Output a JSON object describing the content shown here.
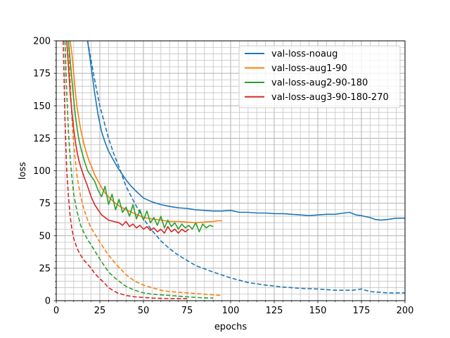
{
  "chart_data": {
    "type": "line",
    "title": "",
    "xlabel": "epochs",
    "ylabel": "loss",
    "xlim": [
      0,
      200
    ],
    "ylim": [
      0,
      200
    ],
    "xticks": [
      "0",
      "25",
      "50",
      "75",
      "100",
      "125",
      "150",
      "175",
      "200"
    ],
    "yticks": [
      "0",
      "25",
      "50",
      "75",
      "100",
      "125",
      "150",
      "175",
      "200"
    ],
    "grid": "major and minor",
    "legend_position": "top-right",
    "series": [
      {
        "name": "val-loss-noaug",
        "color": "#1f77b4",
        "style": "solid",
        "x": [
          18,
          20,
          22,
          24,
          26,
          28,
          30,
          32,
          35,
          38,
          40,
          43,
          46,
          50,
          55,
          60,
          65,
          70,
          75,
          80,
          85,
          90,
          95,
          100,
          105,
          110,
          115,
          120,
          125,
          130,
          135,
          140,
          145,
          150,
          155,
          160,
          165,
          168,
          170,
          172,
          175,
          178,
          180,
          183,
          186,
          190,
          195,
          200
        ],
        "y": [
          200,
          180,
          160,
          143,
          130,
          122,
          115,
          110,
          103,
          97,
          93,
          88,
          84,
          79,
          76,
          74,
          72.5,
          71.5,
          71,
          70,
          69.5,
          69,
          69,
          69.5,
          68,
          68,
          67.5,
          67.5,
          67,
          67,
          66.5,
          66,
          65.5,
          66,
          66.5,
          66.5,
          67.5,
          68,
          67,
          66,
          65.5,
          64.5,
          64,
          62.5,
          62,
          62.5,
          63.5,
          63.5
        ]
      },
      {
        "name": "val-loss-noaug",
        "color": "#1f77b4",
        "style": "dashed",
        "x": [
          18,
          20,
          22,
          25,
          28,
          30,
          33,
          36,
          40,
          45,
          50,
          55,
          60,
          65,
          70,
          75,
          80,
          90,
          100,
          110,
          120,
          130,
          140,
          150,
          160,
          170,
          175,
          180,
          190,
          200
        ],
        "y": [
          200,
          185,
          170,
          150,
          135,
          125,
          113,
          103,
          88,
          75,
          63,
          54,
          46,
          40,
          35,
          31,
          27,
          22,
          17.5,
          14,
          12,
          10.5,
          9.5,
          9,
          8,
          8,
          9,
          7,
          6,
          6
        ]
      },
      {
        "name": "val-loss-aug1-90",
        "color": "#ff7f0e",
        "style": "solid",
        "x": [
          8,
          9,
          10,
          11,
          12,
          13,
          14,
          15,
          16,
          17,
          18,
          19,
          20,
          22,
          24,
          26,
          28,
          30,
          33,
          36,
          40,
          45,
          50,
          55,
          60,
          65,
          70,
          75,
          80,
          85,
          90,
          93,
          95
        ],
        "y": [
          200,
          190,
          175,
          160,
          148,
          140,
          132,
          126,
          120,
          115,
          111,
          107,
          104,
          97,
          92,
          87,
          83,
          80,
          76,
          73,
          70,
          67,
          64,
          63,
          62,
          61,
          61,
          60.5,
          60,
          60.5,
          61,
          61.5,
          61.5
        ]
      },
      {
        "name": "val-loss-aug1-90",
        "color": "#ff7f0e",
        "style": "dashed",
        "x": [
          7,
          8,
          9,
          10,
          12,
          14,
          16,
          18,
          20,
          25,
          30,
          35,
          40,
          45,
          50,
          55,
          60,
          65,
          70,
          75,
          80,
          85,
          90,
          95
        ],
        "y": [
          200,
          170,
          140,
          120,
          95,
          80,
          70,
          62,
          56,
          45,
          35,
          27,
          20,
          15,
          12,
          10,
          8,
          7,
          6.5,
          6,
          5.5,
          5,
          4.5,
          4
        ]
      },
      {
        "name": "val-loss-aug2-90-180",
        "color": "#2ca02c",
        "style": "solid",
        "x": [
          7,
          8,
          9,
          10,
          11,
          12,
          13,
          14,
          15,
          16,
          17,
          18,
          20,
          22,
          24,
          26,
          28,
          30,
          32,
          34,
          36,
          38,
          40,
          42,
          44,
          46,
          48,
          50,
          52,
          54,
          56,
          58,
          60,
          62,
          64,
          66,
          68,
          70,
          72,
          74,
          76,
          78,
          80,
          82,
          84,
          86,
          88,
          90
        ],
        "y": [
          200,
          185,
          170,
          155,
          142,
          132,
          124,
          118,
          113,
          108,
          104,
          100,
          96,
          92,
          85,
          80,
          88,
          74,
          82,
          70,
          78,
          68,
          72,
          65,
          74,
          63,
          70,
          62,
          69,
          60,
          64,
          58,
          65,
          56,
          62,
          57,
          60,
          55,
          59,
          56,
          58,
          55,
          60,
          53,
          59,
          56,
          58,
          57
        ]
      },
      {
        "name": "val-loss-aug2-90-180",
        "color": "#2ca02c",
        "style": "dashed",
        "x": [
          5,
          6,
          7,
          8,
          9,
          10,
          12,
          14,
          16,
          18,
          20,
          25,
          30,
          35,
          40,
          45,
          50,
          55,
          60,
          65,
          70,
          75,
          80,
          85,
          90
        ],
        "y": [
          200,
          160,
          130,
          110,
          95,
          82,
          68,
          58,
          52,
          47,
          43,
          32,
          22,
          16,
          11,
          8,
          6,
          5,
          4.5,
          4,
          3.5,
          3,
          2.5,
          2.2,
          2
        ]
      },
      {
        "name": "val-loss-aug3-90-180-270",
        "color": "#d62728",
        "style": "solid",
        "x": [
          6,
          7,
          8,
          9,
          10,
          11,
          12,
          13,
          14,
          15,
          16,
          18,
          20,
          22,
          24,
          26,
          28,
          30,
          33,
          36,
          38,
          40,
          42,
          44,
          46,
          48,
          50,
          52,
          54,
          56,
          58,
          60,
          62,
          64,
          66,
          68,
          70,
          72,
          74,
          76
        ],
        "y": [
          200,
          180,
          160,
          145,
          132,
          122,
          114,
          108,
          103,
          99,
          95,
          88,
          80,
          74,
          70,
          66,
          64,
          62,
          61,
          60,
          58,
          61,
          57,
          59,
          56,
          58,
          55,
          57,
          54,
          56,
          53,
          55,
          52,
          57,
          53,
          55,
          52,
          55,
          53,
          55
        ]
      },
      {
        "name": "val-loss-aug3-90-180-270",
        "color": "#d62728",
        "style": "dashed",
        "x": [
          4,
          5,
          6,
          7,
          8,
          9,
          10,
          12,
          14,
          16,
          18,
          20,
          22,
          25,
          28,
          30,
          35,
          40,
          45,
          50,
          55,
          60,
          65,
          70,
          75
        ],
        "y": [
          200,
          140,
          100,
          80,
          65,
          55,
          48,
          40,
          35,
          31,
          28,
          25,
          21,
          17,
          13,
          10,
          6,
          4,
          3,
          2.5,
          2,
          1.8,
          1.5,
          1.5,
          1.5
        ]
      }
    ],
    "legend": [
      {
        "label": "val-loss-noaug",
        "color": "#1f77b4"
      },
      {
        "label": "val-loss-aug1-90",
        "color": "#ff7f0e"
      },
      {
        "label": "val-loss-aug2-90-180",
        "color": "#2ca02c"
      },
      {
        "label": "val-loss-aug3-90-180-270",
        "color": "#d62728"
      }
    ]
  }
}
